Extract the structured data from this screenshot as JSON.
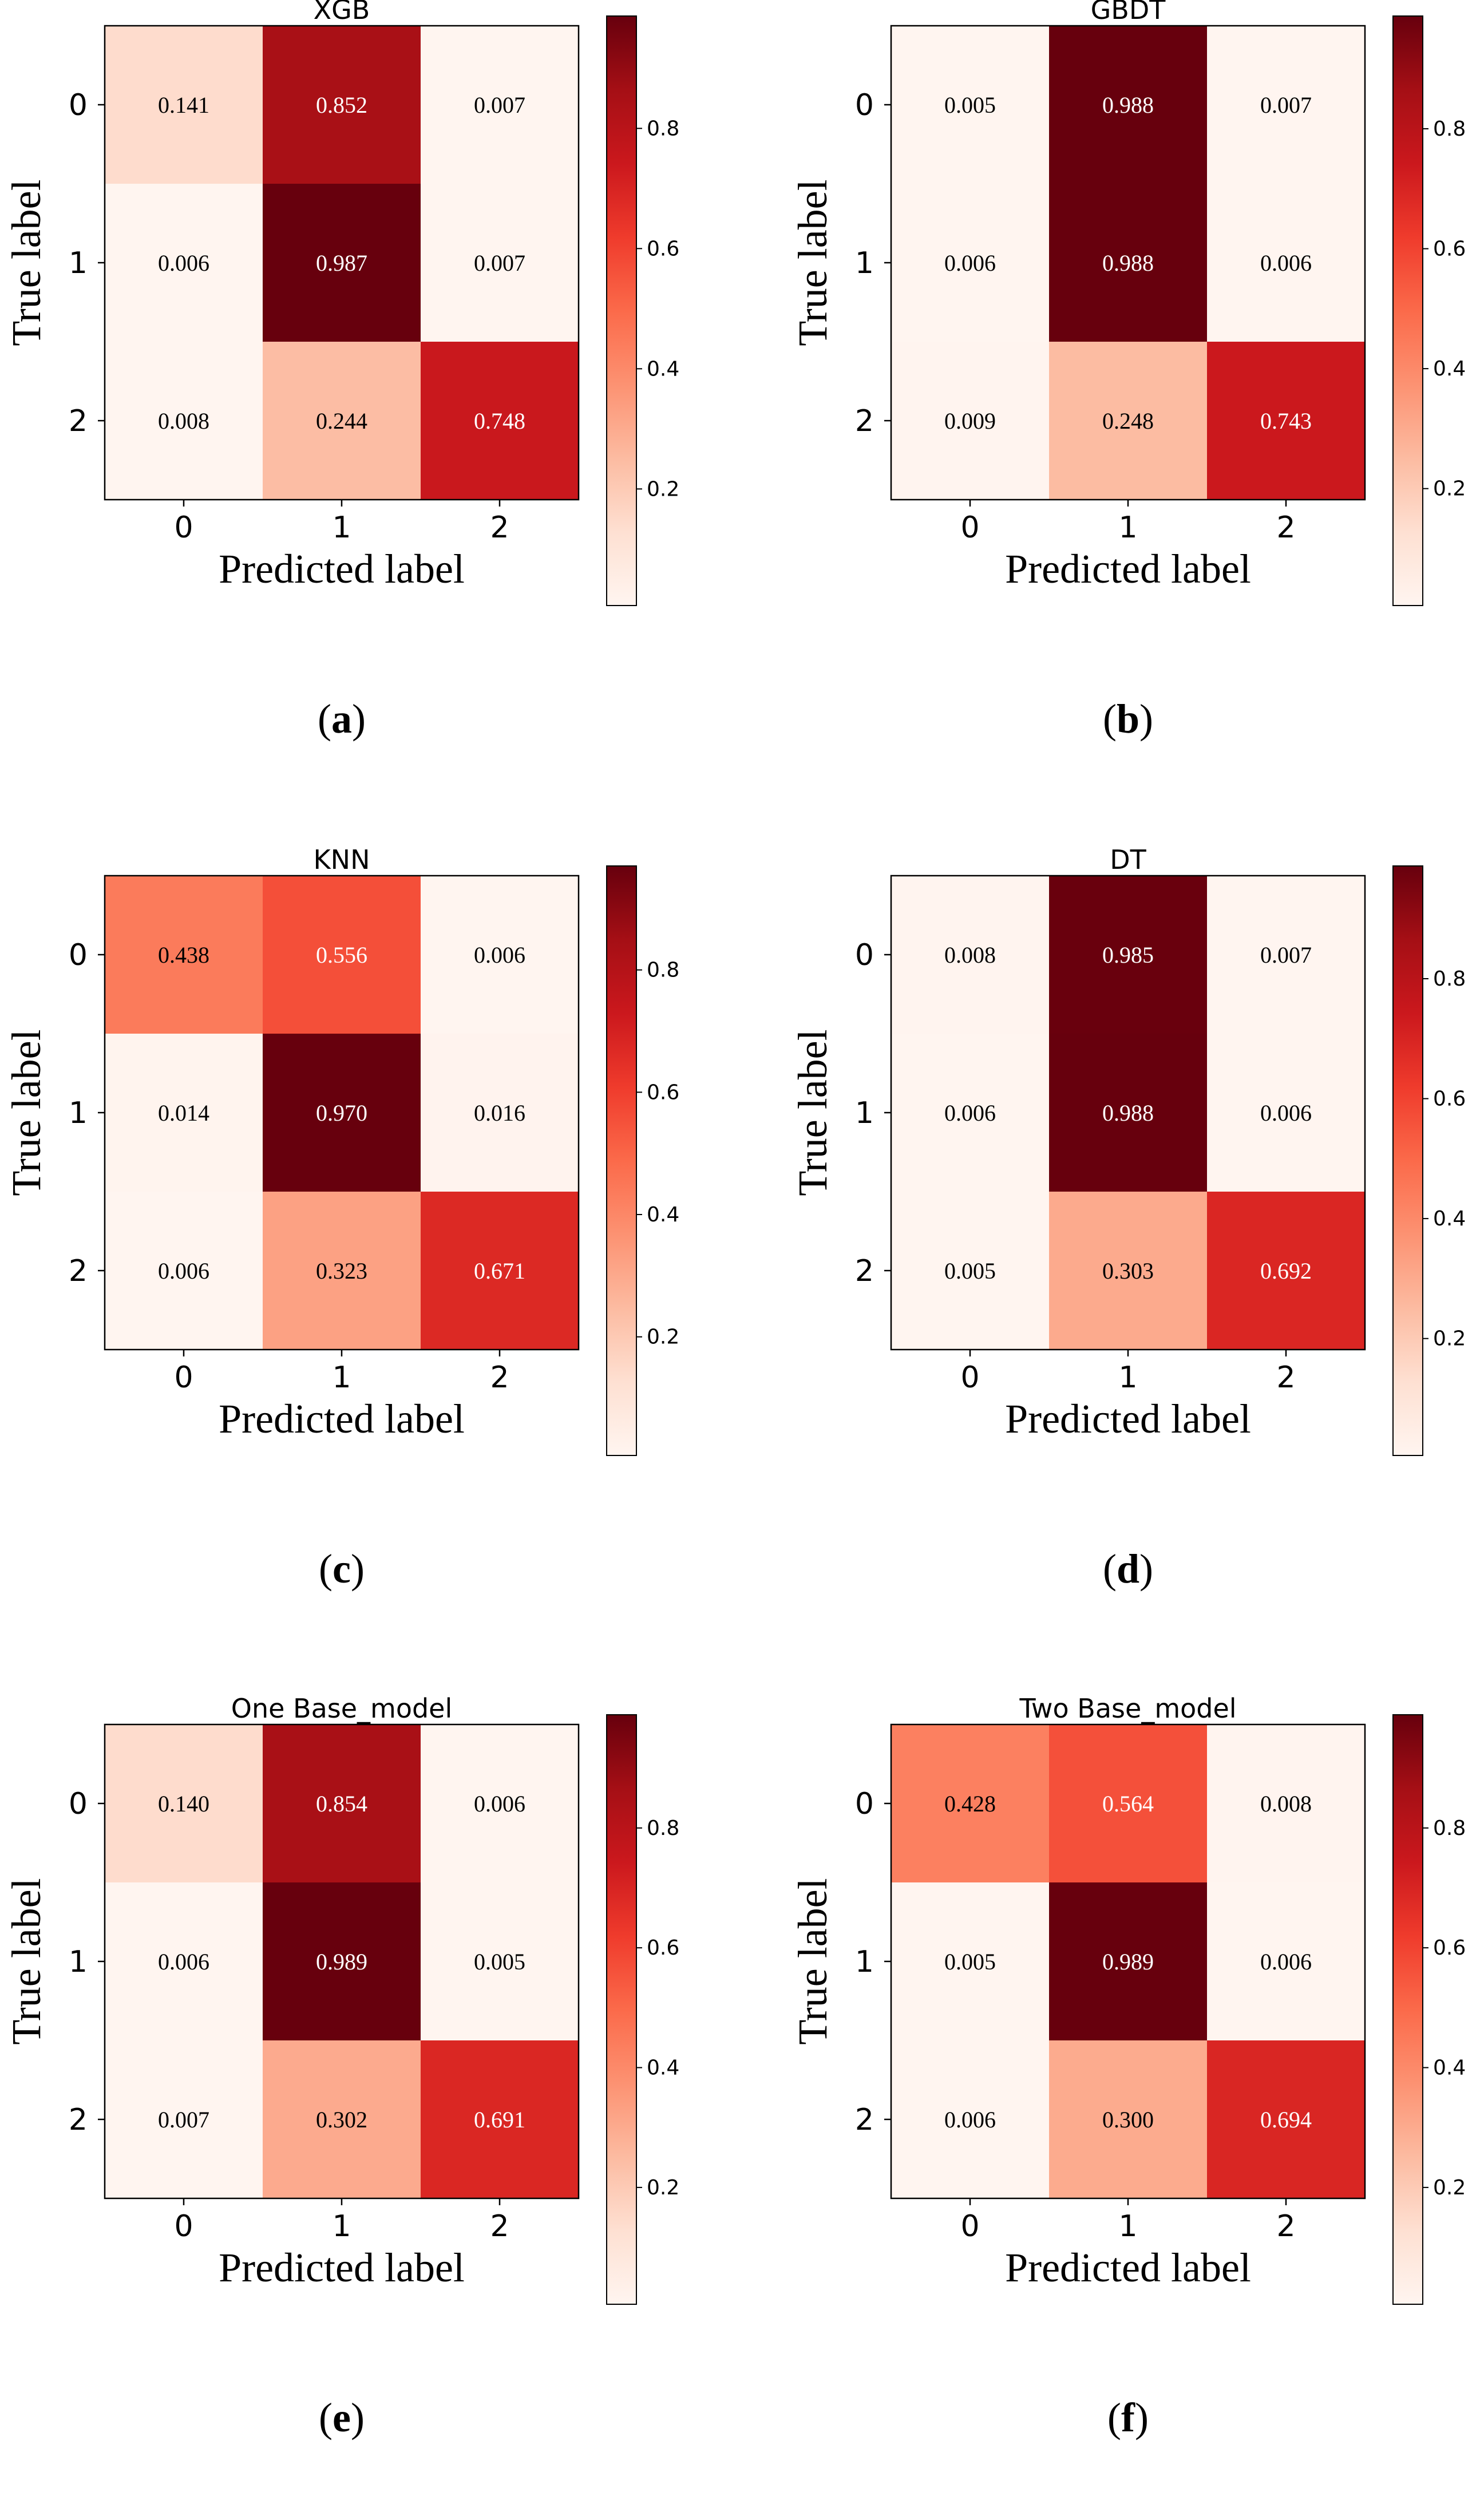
{
  "colors": {
    "cmap": [
      "#fff5f0",
      "#fee0d2",
      "#fcbba1",
      "#fc9272",
      "#fb6a4a",
      "#ef3b2c",
      "#cb181d",
      "#a50f15",
      "#67000d"
    ],
    "text_dark": "#000000",
    "text_light": "#ffffff"
  },
  "chart_data": [
    {
      "type": "heatmap",
      "panel_id": "a",
      "caption": "a",
      "title": "XGB",
      "xlabel": "Predicted label",
      "ylabel": "True label",
      "x_ticks": [
        "0",
        "1",
        "2"
      ],
      "y_ticks": [
        "0",
        "1",
        "2"
      ],
      "matrix": [
        [
          0.141,
          0.852,
          0.007
        ],
        [
          0.006,
          0.987,
          0.007
        ],
        [
          0.008,
          0.244,
          0.748
        ]
      ],
      "labels": [
        [
          "0.141",
          "0.852",
          "0.007"
        ],
        [
          "0.006",
          "0.987",
          "0.007"
        ],
        [
          "0.008",
          "0.244",
          "0.748"
        ]
      ],
      "colorbar": {
        "min": 0.006,
        "max": 0.987,
        "ticks": [
          0.2,
          0.4,
          0.6,
          0.8
        ],
        "tick_labels": [
          "0.2",
          "0.4",
          "0.6",
          "0.8"
        ]
      }
    },
    {
      "type": "heatmap",
      "panel_id": "b",
      "caption": "b",
      "title": "GBDT",
      "xlabel": "Predicted label",
      "ylabel": "True label",
      "x_ticks": [
        "0",
        "1",
        "2"
      ],
      "y_ticks": [
        "0",
        "1",
        "2"
      ],
      "matrix": [
        [
          0.005,
          0.988,
          0.007
        ],
        [
          0.006,
          0.988,
          0.006
        ],
        [
          0.009,
          0.248,
          0.743
        ]
      ],
      "labels": [
        [
          "0.005",
          "0.988",
          "0.007"
        ],
        [
          "0.006",
          "0.988",
          "0.006"
        ],
        [
          "0.009",
          "0.248",
          "0.743"
        ]
      ],
      "colorbar": {
        "min": 0.005,
        "max": 0.988,
        "ticks": [
          0.2,
          0.4,
          0.6,
          0.8
        ],
        "tick_labels": [
          "0.2",
          "0.4",
          "0.6",
          "0.8"
        ]
      }
    },
    {
      "type": "heatmap",
      "panel_id": "c",
      "caption": "c",
      "title": "KNN",
      "xlabel": "Predicted label",
      "ylabel": "True label",
      "x_ticks": [
        "0",
        "1",
        "2"
      ],
      "y_ticks": [
        "0",
        "1",
        "2"
      ],
      "matrix": [
        [
          0.438,
          0.556,
          0.006
        ],
        [
          0.014,
          0.97,
          0.016
        ],
        [
          0.006,
          0.323,
          0.671
        ]
      ],
      "labels": [
        [
          "0.438",
          "0.556",
          "0.006"
        ],
        [
          "0.014",
          "0.970",
          "0.016"
        ],
        [
          "0.006",
          "0.323",
          "0.671"
        ]
      ],
      "colorbar": {
        "min": 0.006,
        "max": 0.97,
        "ticks": [
          0.2,
          0.4,
          0.6,
          0.8
        ],
        "tick_labels": [
          "0.2",
          "0.4",
          "0.6",
          "0.8"
        ]
      }
    },
    {
      "type": "heatmap",
      "panel_id": "d",
      "caption": "d",
      "title": "DT",
      "xlabel": "Predicted label",
      "ylabel": "True label",
      "x_ticks": [
        "0",
        "1",
        "2"
      ],
      "y_ticks": [
        "0",
        "1",
        "2"
      ],
      "matrix": [
        [
          0.008,
          0.985,
          0.007
        ],
        [
          0.006,
          0.988,
          0.006
        ],
        [
          0.005,
          0.303,
          0.692
        ]
      ],
      "labels": [
        [
          "0.008",
          "0.985",
          "0.007"
        ],
        [
          "0.006",
          "0.988",
          "0.006"
        ],
        [
          "0.005",
          "0.303",
          "0.692"
        ]
      ],
      "colorbar": {
        "min": 0.005,
        "max": 0.988,
        "ticks": [
          0.2,
          0.4,
          0.6,
          0.8
        ],
        "tick_labels": [
          "0.2",
          "0.4",
          "0.6",
          "0.8"
        ]
      }
    },
    {
      "type": "heatmap",
      "panel_id": "e",
      "caption": "e",
      "title": "One Base_model",
      "xlabel": "Predicted label",
      "ylabel": "True label",
      "x_ticks": [
        "0",
        "1",
        "2"
      ],
      "y_ticks": [
        "0",
        "1",
        "2"
      ],
      "matrix": [
        [
          0.14,
          0.854,
          0.006
        ],
        [
          0.006,
          0.989,
          0.005
        ],
        [
          0.007,
          0.302,
          0.691
        ]
      ],
      "labels": [
        [
          "0.140",
          "0.854",
          "0.006"
        ],
        [
          "0.006",
          "0.989",
          "0.005"
        ],
        [
          "0.007",
          "0.302",
          "0.691"
        ]
      ],
      "colorbar": {
        "min": 0.005,
        "max": 0.989,
        "ticks": [
          0.2,
          0.4,
          0.6,
          0.8
        ],
        "tick_labels": [
          "0.2",
          "0.4",
          "0.6",
          "0.8"
        ]
      }
    },
    {
      "type": "heatmap",
      "panel_id": "f",
      "caption": "f",
      "title": "Two Base_model",
      "xlabel": "Predicted label",
      "ylabel": "True label",
      "x_ticks": [
        "0",
        "1",
        "2"
      ],
      "y_ticks": [
        "0",
        "1",
        "2"
      ],
      "matrix": [
        [
          0.428,
          0.564,
          0.008
        ],
        [
          0.005,
          0.989,
          0.006
        ],
        [
          0.006,
          0.3,
          0.694
        ]
      ],
      "labels": [
        [
          "0.428",
          "0.564",
          "0.008"
        ],
        [
          "0.005",
          "0.989",
          "0.006"
        ],
        [
          "0.006",
          "0.300",
          "0.694"
        ]
      ],
      "colorbar": {
        "min": 0.005,
        "max": 0.989,
        "ticks": [
          0.2,
          0.4,
          0.6,
          0.8
        ],
        "tick_labels": [
          "0.2",
          "0.4",
          "0.6",
          "0.8"
        ]
      }
    }
  ]
}
